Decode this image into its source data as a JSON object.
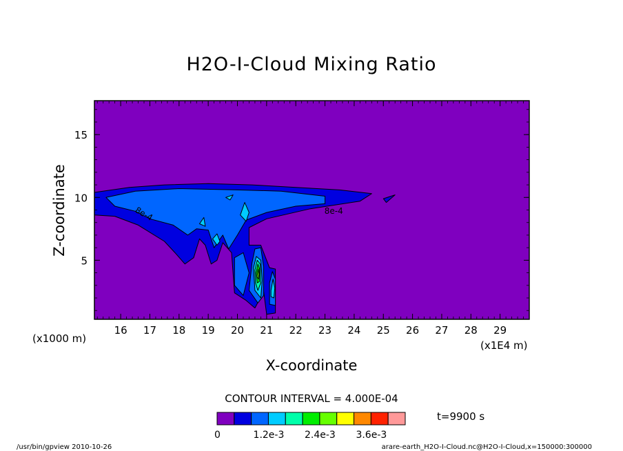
{
  "chart_data": {
    "type": "contour",
    "title": "H2O-I-Cloud Mixing Ratio",
    "xlabel": "X-coordinate",
    "ylabel": "Z-coordinate",
    "x_unit": "(x1E4 m)",
    "z_unit": "(x1000 m)",
    "xlim": [
      15.1,
      30.0
    ],
    "zlim": [
      0.3,
      17.7
    ],
    "x_ticks": [
      "16",
      "17",
      "18",
      "19",
      "20",
      "21",
      "22",
      "23",
      "24",
      "25",
      "26",
      "27",
      "28",
      "29"
    ],
    "z_ticks": [
      "5",
      "10",
      "15"
    ],
    "contour_interval_label": "CONTOUR INTERVAL = 4.000E-04",
    "time_label": "t=9900 s",
    "contour_labels": [
      "8e-4",
      "8e-4"
    ],
    "colorbar": {
      "colors": [
        "#7f00bf",
        "#0000e0",
        "#0066ff",
        "#00ccff",
        "#00ffaa",
        "#00ee00",
        "#66ff00",
        "#ffff00",
        "#ff8800",
        "#ff2200",
        "#ff9999"
      ],
      "labels": [
        "0",
        "1.2e-3",
        "2.4e-3",
        "3.6e-3"
      ],
      "label_values": [
        0,
        0.0012,
        0.0024,
        0.0036
      ]
    },
    "levels": [
      {
        "level": 0.0004,
        "color": "#0000e0",
        "region_x": [
          15.1,
          25.0
        ],
        "region_z": [
          0.3,
          11.2
        ],
        "points": [
          [
            15.1,
            9.7
          ],
          [
            15.1,
            10.4
          ],
          [
            16.3,
            10.8
          ],
          [
            17.5,
            11.0
          ],
          [
            19.0,
            11.1
          ],
          [
            20.5,
            11.0
          ],
          [
            22.0,
            10.8
          ],
          [
            23.5,
            10.6
          ],
          [
            24.6,
            10.3
          ],
          [
            24.2,
            9.7
          ],
          [
            22.5,
            9.1
          ],
          [
            21.0,
            8.3
          ],
          [
            20.4,
            7.6
          ],
          [
            20.4,
            6.2
          ],
          [
            20.8,
            6.2
          ],
          [
            21.1,
            4.4
          ],
          [
            21.3,
            4.3
          ],
          [
            21.3,
            0.8
          ],
          [
            21.0,
            0.7
          ],
          [
            20.9,
            2.5
          ],
          [
            20.6,
            1.2
          ],
          [
            20.3,
            1.8
          ],
          [
            19.9,
            2.4
          ],
          [
            19.8,
            5.6
          ],
          [
            19.5,
            6.4
          ],
          [
            19.3,
            5.0
          ],
          [
            19.1,
            4.7
          ],
          [
            18.9,
            6.2
          ],
          [
            18.7,
            6.7
          ],
          [
            18.5,
            5.2
          ],
          [
            18.2,
            4.7
          ],
          [
            17.9,
            5.5
          ],
          [
            17.5,
            6.5
          ],
          [
            16.6,
            7.8
          ],
          [
            15.8,
            8.5
          ],
          [
            15.1,
            8.6
          ]
        ]
      },
      {
        "level": 0.0004,
        "color": "#0000e0",
        "points": [
          [
            25.0,
            9.9
          ],
          [
            25.4,
            10.2
          ],
          [
            25.1,
            9.6
          ]
        ]
      },
      {
        "level": 0.0008,
        "color": "#0066ff",
        "points": [
          [
            15.5,
            10.0
          ],
          [
            16.5,
            10.5
          ],
          [
            18.0,
            10.7
          ],
          [
            20.0,
            10.6
          ],
          [
            21.5,
            10.5
          ],
          [
            23.0,
            10.1
          ],
          [
            23.0,
            9.5
          ],
          [
            22.0,
            9.3
          ],
          [
            21.0,
            8.8
          ],
          [
            20.3,
            8.2
          ],
          [
            20.0,
            7.0
          ],
          [
            19.7,
            5.9
          ],
          [
            19.5,
            7.0
          ],
          [
            19.2,
            6.0
          ],
          [
            19.0,
            7.4
          ],
          [
            18.6,
            7.5
          ],
          [
            18.3,
            7.0
          ],
          [
            17.8,
            7.8
          ],
          [
            17.0,
            8.3
          ],
          [
            16.5,
            8.9
          ],
          [
            15.8,
            9.3
          ]
        ]
      },
      {
        "level": 0.0008,
        "color": "#0066ff",
        "points": [
          [
            19.9,
            5.2
          ],
          [
            20.2,
            5.6
          ],
          [
            20.4,
            4.0
          ],
          [
            20.2,
            2.2
          ],
          [
            19.9,
            3.0
          ]
        ]
      },
      {
        "level": 0.0008,
        "color": "#0066ff",
        "points": [
          [
            20.5,
            4.8
          ],
          [
            20.6,
            5.9
          ],
          [
            20.8,
            6.0
          ],
          [
            20.9,
            4.5
          ],
          [
            20.9,
            2.2
          ],
          [
            20.7,
            1.6
          ],
          [
            20.4,
            2.6
          ]
        ]
      },
      {
        "level": 0.0008,
        "color": "#0066ff",
        "points": [
          [
            21.1,
            3.2
          ],
          [
            21.2,
            4.1
          ],
          [
            21.3,
            3.5
          ],
          [
            21.3,
            1.4
          ],
          [
            21.1,
            1.5
          ]
        ]
      },
      {
        "level": 0.0012,
        "color": "#00ccff",
        "points": [
          [
            20.55,
            4.4
          ],
          [
            20.65,
            5.3
          ],
          [
            20.8,
            5.0
          ],
          [
            20.85,
            3.4
          ],
          [
            20.8,
            2.0
          ],
          [
            20.6,
            2.6
          ]
        ]
      },
      {
        "level": 0.0012,
        "color": "#00ccff",
        "points": [
          [
            21.15,
            2.6
          ],
          [
            21.22,
            3.5
          ],
          [
            21.28,
            2.8
          ],
          [
            21.25,
            2.0
          ],
          [
            21.15,
            2.1
          ]
        ]
      },
      {
        "level": 0.0012,
        "color": "#00ccff",
        "points": [
          [
            19.15,
            6.7
          ],
          [
            19.3,
            7.1
          ],
          [
            19.4,
            6.5
          ],
          [
            19.3,
            6.2
          ]
        ]
      },
      {
        "level": 0.0012,
        "color": "#00ccff",
        "points": [
          [
            20.1,
            8.6
          ],
          [
            20.25,
            9.6
          ],
          [
            20.4,
            8.8
          ],
          [
            20.3,
            8.1
          ]
        ]
      },
      {
        "level": 0.0012,
        "color": "#00ccff",
        "points": [
          [
            18.7,
            7.9
          ],
          [
            18.85,
            8.4
          ],
          [
            18.9,
            7.7
          ]
        ]
      },
      {
        "level": 0.0012,
        "color": "#00ccff",
        "points": [
          [
            19.6,
            10.0
          ],
          [
            19.85,
            10.2
          ],
          [
            19.75,
            9.8
          ]
        ]
      },
      {
        "level": 0.0016,
        "color": "#00ffaa",
        "points": [
          [
            20.6,
            4.2
          ],
          [
            20.68,
            5.0
          ],
          [
            20.78,
            4.7
          ],
          [
            20.8,
            3.2
          ],
          [
            20.7,
            2.6
          ],
          [
            20.62,
            3.2
          ]
        ]
      },
      {
        "level": 0.002,
        "color": "#00ee00",
        "points": [
          [
            20.64,
            4.0
          ],
          [
            20.7,
            4.7
          ],
          [
            20.76,
            4.3
          ],
          [
            20.75,
            3.3
          ],
          [
            20.68,
            3.2
          ]
        ]
      },
      {
        "level": 0.0024,
        "color": "#66ff00",
        "points": [
          [
            20.67,
            3.7
          ],
          [
            20.71,
            4.3
          ],
          [
            20.74,
            3.9
          ],
          [
            20.72,
            3.5
          ]
        ]
      }
    ]
  },
  "footer": {
    "left": "/usr/bin/gpview  2010-10-26",
    "right": "arare-earth_H2O-I-Cloud.nc@H2O-I-Cloud,x=150000:300000"
  }
}
